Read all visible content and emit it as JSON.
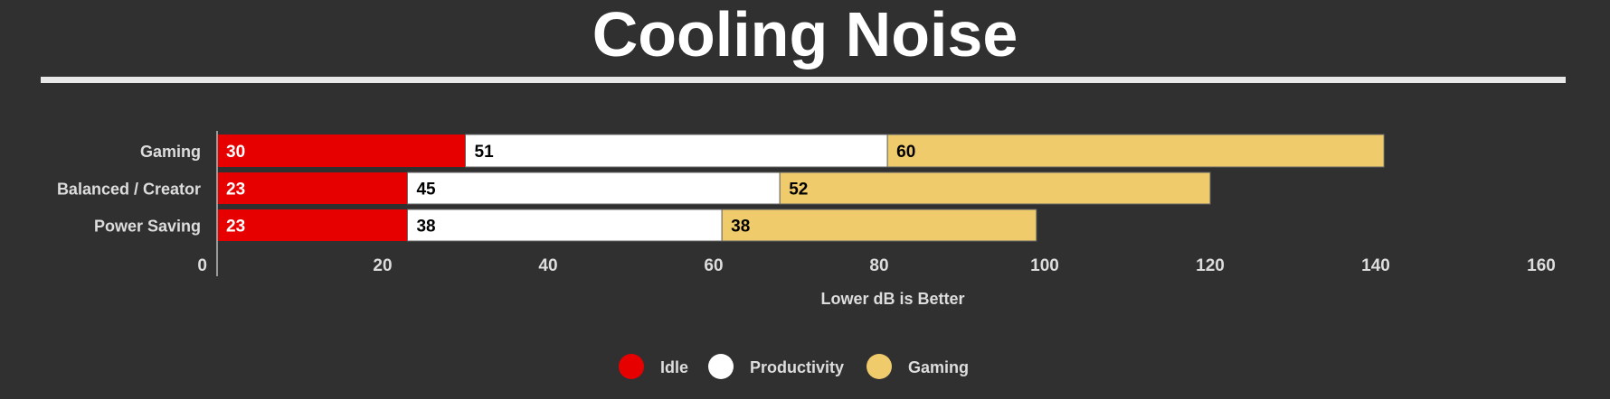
{
  "chart_data": {
    "type": "bar",
    "orientation": "horizontal",
    "stacked": true,
    "title": "Cooling Noise",
    "xlabel": "Lower dB is Better",
    "ylabel": "",
    "categories": [
      "Gaming",
      "Balanced / Creator",
      "Power Saving"
    ],
    "series": [
      {
        "name": "Idle",
        "values": [
          30,
          23,
          23
        ],
        "color": "#e60000",
        "label_color": "#ffffff"
      },
      {
        "name": "Productivity",
        "values": [
          51,
          45,
          38
        ],
        "color": "#ffffff",
        "label_color": "#000000"
      },
      {
        "name": "Gaming",
        "values": [
          60,
          52,
          38
        ],
        "color": "#f0cb6b",
        "label_color": "#000000"
      }
    ],
    "xlim": [
      0,
      160
    ],
    "xticks": [
      0,
      20,
      40,
      60,
      80,
      100,
      120,
      140,
      160
    ],
    "grid": false,
    "legend_position": "bottom"
  }
}
